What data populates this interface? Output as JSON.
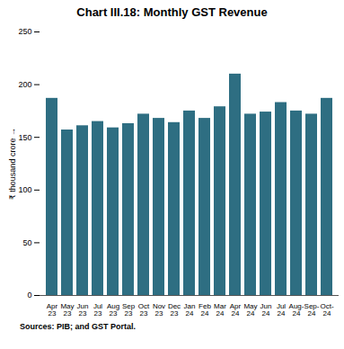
{
  "chart_data": {
    "type": "bar",
    "title": "Chart III.18: Monthly GST Revenue",
    "ylabel": "₹ thousand crore",
    "source": "Sources: PIB; and GST Portal.",
    "categories": [
      "Apr\n23",
      "May\n23",
      "Jun\n23",
      "Jul\n23",
      "Aug\n23",
      "Sep\n23",
      "Oct\n23",
      "Nov\n23",
      "Dec\n23",
      "Jan\n24",
      "Feb\n24",
      "Mar\n24",
      "Apr\n24",
      "May\n24",
      "Jun\n24",
      "Jul\n24",
      "Aug-\n24",
      "Sep-\n24",
      "Oct-\n24"
    ],
    "values": [
      187,
      157,
      161,
      165,
      159,
      163,
      172,
      168,
      164,
      175,
      168,
      179,
      210,
      172,
      174,
      183,
      175,
      172,
      187
    ],
    "color": "#2e6e82",
    "ylim": [
      0,
      250
    ],
    "yticks": [
      0,
      50,
      100,
      150,
      200,
      250
    ],
    "grid": false
  }
}
